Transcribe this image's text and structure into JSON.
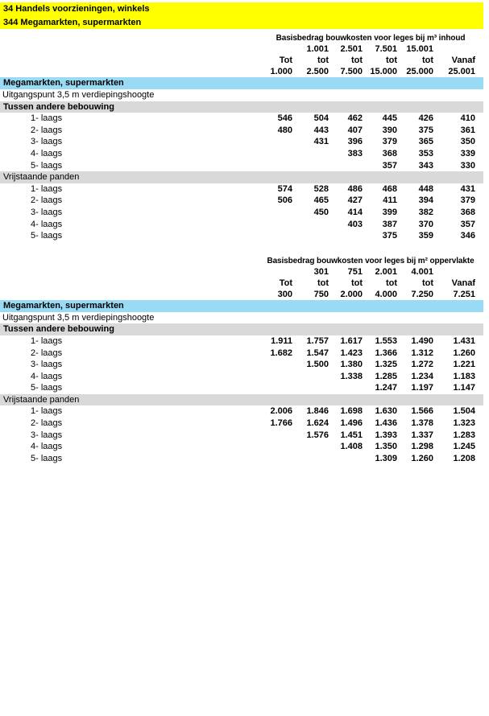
{
  "colors": {
    "highlight_yellow": "#FFFF00",
    "section_blue": "#99DAF5",
    "subsection_gray": "#D9D9D9"
  },
  "page_header": {
    "lines": [
      "34 Handels voorzieningen, winkels",
      "344 Megamarkten, supermarkten"
    ]
  },
  "tables": [
    {
      "title": "Basisbedrag bouwkosten voor leges bij m³ inhoud",
      "col_headers": {
        "upper": [
          "",
          "1.001",
          "2.501",
          "7.501",
          "15.001",
          ""
        ],
        "mid": [
          "Tot",
          "tot",
          "tot",
          "tot",
          "tot",
          "Vanaf"
        ],
        "lower": [
          "1.000",
          "2.500",
          "7.500",
          "15.000",
          "25.000",
          "25.001"
        ]
      },
      "section_bar": "Megamarkten, supermarkten",
      "note": "Uitgangspunt 3,5 m verdiepingshoogte",
      "groups": [
        {
          "label": "Tussen andere bebouwing",
          "bold": true,
          "rows": [
            {
              "label": "1- laags",
              "values": [
                "546",
                "504",
                "462",
                "445",
                "426",
                "410"
              ]
            },
            {
              "label": "2- laags",
              "values": [
                "480",
                "443",
                "407",
                "390",
                "375",
                "361"
              ]
            },
            {
              "label": "3- laags",
              "values": [
                "",
                "431",
                "396",
                "379",
                "365",
                "350"
              ]
            },
            {
              "label": "4- laags",
              "values": [
                "",
                "",
                "383",
                "368",
                "353",
                "339"
              ]
            },
            {
              "label": "5- laags",
              "values": [
                "",
                "",
                "",
                "357",
                "343",
                "330"
              ]
            }
          ]
        },
        {
          "label": "Vrijstaande panden",
          "bold": false,
          "rows": [
            {
              "label": "1- laags",
              "values": [
                "574",
                "528",
                "486",
                "468",
                "448",
                "431"
              ]
            },
            {
              "label": "2- laags",
              "values": [
                "506",
                "465",
                "427",
                "411",
                "394",
                "379"
              ]
            },
            {
              "label": "3- laags",
              "values": [
                "",
                "450",
                "414",
                "399",
                "382",
                "368"
              ]
            },
            {
              "label": "4- laags",
              "values": [
                "",
                "",
                "403",
                "387",
                "370",
                "357"
              ]
            },
            {
              "label": "5- laags",
              "values": [
                "",
                "",
                "",
                "375",
                "359",
                "346"
              ]
            }
          ]
        }
      ]
    },
    {
      "title": "Basisbedrag bouwkosten voor leges bij m² oppervlakte",
      "col_headers": {
        "upper": [
          "",
          "301",
          "751",
          "2.001",
          "4.001",
          ""
        ],
        "mid": [
          "Tot",
          "tot",
          "tot",
          "tot",
          "tot",
          "Vanaf"
        ],
        "lower": [
          "300",
          "750",
          "2.000",
          "4.000",
          "7.250",
          "7.251"
        ]
      },
      "section_bar": "Megamarkten, supermarkten",
      "note": "Uitgangspunt 3,5 m verdiepingshoogte",
      "groups": [
        {
          "label": "Tussen andere bebouwing",
          "bold": true,
          "rows": [
            {
              "label": "1- laags",
              "values": [
                "1.911",
                "1.757",
                "1.617",
                "1.553",
                "1.490",
                "1.431"
              ]
            },
            {
              "label": "2- laags",
              "values": [
                "1.682",
                "1.547",
                "1.423",
                "1.366",
                "1.312",
                "1.260"
              ]
            },
            {
              "label": "3- laags",
              "values": [
                "",
                "1.500",
                "1.380",
                "1.325",
                "1.272",
                "1.221"
              ]
            },
            {
              "label": "4- laags",
              "values": [
                "",
                "",
                "1.338",
                "1.285",
                "1.234",
                "1.183"
              ]
            },
            {
              "label": "5- laags",
              "values": [
                "",
                "",
                "",
                "1.247",
                "1.197",
                "1.147"
              ]
            }
          ]
        },
        {
          "label": "Vrijstaande panden",
          "bold": false,
          "rows": [
            {
              "label": "1- laags",
              "values": [
                "2.006",
                "1.846",
                "1.698",
                "1.630",
                "1.566",
                "1.504"
              ]
            },
            {
              "label": "2- laags",
              "values": [
                "1.766",
                "1.624",
                "1.496",
                "1.436",
                "1.378",
                "1.323"
              ]
            },
            {
              "label": "3- laags",
              "values": [
                "",
                "1.576",
                "1.451",
                "1.393",
                "1.337",
                "1.283"
              ]
            },
            {
              "label": "4- laags",
              "values": [
                "",
                "",
                "1.408",
                "1.350",
                "1.298",
                "1.245"
              ]
            },
            {
              "label": "5- laags",
              "values": [
                "",
                "",
                "",
                "1.309",
                "1.260",
                "1.208"
              ]
            }
          ]
        }
      ]
    }
  ]
}
